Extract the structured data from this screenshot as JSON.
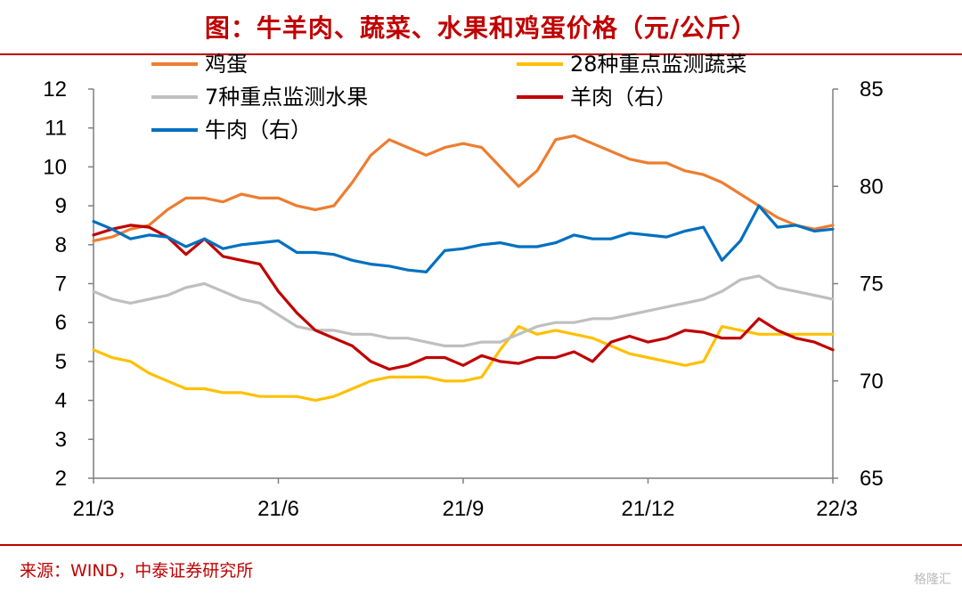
{
  "title": "图：牛羊肉、蔬菜、水果和鸡蛋价格（元/公斤）",
  "source": "来源：WIND，中泰证券研究所",
  "watermark": "格隆汇",
  "chart_data": {
    "type": "line",
    "x_tick_labels": [
      "21/3",
      "21/6",
      "21/9",
      "21/12",
      "22/3"
    ],
    "left_axis": {
      "ylim": [
        2,
        12
      ],
      "ticks": [
        2,
        3,
        4,
        5,
        6,
        7,
        8,
        9,
        10,
        11,
        12
      ]
    },
    "right_axis": {
      "ylim": [
        65,
        85
      ],
      "ticks": [
        65,
        70,
        75,
        80,
        85
      ]
    },
    "x_range_months": [
      0,
      12
    ],
    "series": [
      {
        "name": "鸡蛋",
        "axis": "left",
        "color": "#ed7d31",
        "x": [
          0,
          0.3,
          0.6,
          0.9,
          1.2,
          1.5,
          1.8,
          2.1,
          2.4,
          2.7,
          3.0,
          3.3,
          3.6,
          3.9,
          4.2,
          4.5,
          4.8,
          5.1,
          5.4,
          5.7,
          6.0,
          6.3,
          6.6,
          6.9,
          7.2,
          7.5,
          7.8,
          8.1,
          8.4,
          8.7,
          9.0,
          9.3,
          9.6,
          9.9,
          10.2,
          10.5,
          10.8,
          11.1,
          11.4,
          11.7,
          12.0
        ],
        "values": [
          8.1,
          8.2,
          8.4,
          8.5,
          8.9,
          9.2,
          9.2,
          9.1,
          9.3,
          9.2,
          9.2,
          9.0,
          8.9,
          9.0,
          9.6,
          10.3,
          10.7,
          10.5,
          10.3,
          10.5,
          10.6,
          10.5,
          10.0,
          9.5,
          9.9,
          10.7,
          10.8,
          10.6,
          10.4,
          10.2,
          10.1,
          10.1,
          9.9,
          9.8,
          9.6,
          9.3,
          9.0,
          8.7,
          8.5,
          8.4,
          8.5
        ]
      },
      {
        "name": "28种重点监测蔬菜",
        "axis": "left",
        "color": "#ffc000",
        "x": [
          0,
          0.3,
          0.6,
          0.9,
          1.2,
          1.5,
          1.8,
          2.1,
          2.4,
          2.7,
          3.0,
          3.3,
          3.6,
          3.9,
          4.2,
          4.5,
          4.8,
          5.1,
          5.4,
          5.7,
          6.0,
          6.3,
          6.6,
          6.9,
          7.2,
          7.5,
          7.8,
          8.1,
          8.4,
          8.7,
          9.0,
          9.3,
          9.6,
          9.9,
          10.2,
          10.5,
          10.8,
          11.1,
          11.4,
          11.7,
          12.0
        ],
        "values": [
          5.3,
          5.1,
          5.0,
          4.7,
          4.5,
          4.3,
          4.3,
          4.2,
          4.2,
          4.1,
          4.1,
          4.1,
          4.0,
          4.1,
          4.3,
          4.5,
          4.6,
          4.6,
          4.6,
          4.5,
          4.5,
          4.6,
          5.3,
          5.9,
          5.7,
          5.8,
          5.7,
          5.6,
          5.4,
          5.2,
          5.1,
          5.0,
          4.9,
          5.0,
          5.9,
          5.8,
          5.7,
          5.7,
          5.7,
          5.7,
          5.7
        ]
      },
      {
        "name": "7种重点监测水果",
        "axis": "left",
        "color": "#bfbfbf",
        "x": [
          0,
          0.3,
          0.6,
          0.9,
          1.2,
          1.5,
          1.8,
          2.1,
          2.4,
          2.7,
          3.0,
          3.3,
          3.6,
          3.9,
          4.2,
          4.5,
          4.8,
          5.1,
          5.4,
          5.7,
          6.0,
          6.3,
          6.6,
          6.9,
          7.2,
          7.5,
          7.8,
          8.1,
          8.4,
          8.7,
          9.0,
          9.3,
          9.6,
          9.9,
          10.2,
          10.5,
          10.8,
          11.1,
          11.4,
          11.7,
          12.0
        ],
        "values": [
          6.8,
          6.6,
          6.5,
          6.6,
          6.7,
          6.9,
          7.0,
          6.8,
          6.6,
          6.5,
          6.2,
          5.9,
          5.8,
          5.8,
          5.7,
          5.7,
          5.6,
          5.6,
          5.5,
          5.4,
          5.4,
          5.5,
          5.5,
          5.7,
          5.9,
          6.0,
          6.0,
          6.1,
          6.1,
          6.2,
          6.3,
          6.4,
          6.5,
          6.6,
          6.8,
          7.1,
          7.2,
          6.9,
          6.8,
          6.7,
          6.6
        ]
      },
      {
        "name": "羊肉（右）",
        "axis": "right",
        "color": "#c00000",
        "x": [
          0,
          0.3,
          0.6,
          0.9,
          1.2,
          1.5,
          1.8,
          2.1,
          2.4,
          2.7,
          3.0,
          3.3,
          3.6,
          3.9,
          4.2,
          4.5,
          4.8,
          5.1,
          5.4,
          5.7,
          6.0,
          6.3,
          6.6,
          6.9,
          7.2,
          7.5,
          7.8,
          8.1,
          8.4,
          8.7,
          9.0,
          9.3,
          9.6,
          9.9,
          10.2,
          10.5,
          10.8,
          11.1,
          11.4,
          11.7,
          12.0
        ],
        "values": [
          77.5,
          77.8,
          78.0,
          77.9,
          77.4,
          76.5,
          77.3,
          76.4,
          76.2,
          76.0,
          74.6,
          73.5,
          72.6,
          72.2,
          71.8,
          71.0,
          70.6,
          70.8,
          71.2,
          71.2,
          70.8,
          71.3,
          71.0,
          70.9,
          71.2,
          71.2,
          71.5,
          71.0,
          72.0,
          72.3,
          72.0,
          72.2,
          72.6,
          72.5,
          72.2,
          72.2,
          73.2,
          72.6,
          72.2,
          72.0,
          71.6
        ]
      },
      {
        "name": "牛肉（右）",
        "axis": "right",
        "color": "#0070c0",
        "x": [
          0,
          0.3,
          0.6,
          0.9,
          1.2,
          1.5,
          1.8,
          2.1,
          2.4,
          2.7,
          3.0,
          3.3,
          3.6,
          3.9,
          4.2,
          4.5,
          4.8,
          5.1,
          5.4,
          5.7,
          6.0,
          6.3,
          6.6,
          6.9,
          7.2,
          7.5,
          7.8,
          8.1,
          8.4,
          8.7,
          9.0,
          9.3,
          9.6,
          9.9,
          10.2,
          10.5,
          10.8,
          11.1,
          11.4,
          11.7,
          12.0
        ],
        "values": [
          78.2,
          77.8,
          77.3,
          77.5,
          77.4,
          76.9,
          77.3,
          76.8,
          77.0,
          77.1,
          77.2,
          76.6,
          76.6,
          76.5,
          76.2,
          76.0,
          75.9,
          75.7,
          75.6,
          76.7,
          76.8,
          77.0,
          77.1,
          76.9,
          76.9,
          77.1,
          77.5,
          77.3,
          77.3,
          77.6,
          77.5,
          77.4,
          77.7,
          77.9,
          76.2,
          77.2,
          79.0,
          77.9,
          78.0,
          77.7,
          77.8
        ]
      }
    ]
  }
}
